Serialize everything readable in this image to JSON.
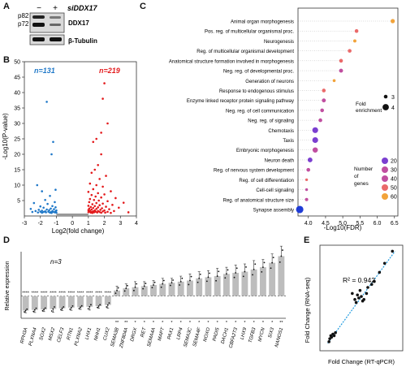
{
  "panels": {
    "A": "A",
    "B": "B",
    "C": "C",
    "D": "D",
    "E": "E"
  },
  "blot": {
    "lane_minus": "−",
    "lane_plus": "+",
    "si_label": "siDDX17",
    "band_p82": "p82",
    "band_p72": "p72",
    "protein_ddx17": "DDX17",
    "protein_tubulin": "β-Tubulin"
  },
  "chart_data": [
    {
      "id": "volcano",
      "type": "scatter",
      "title": "",
      "xlabel": "Log2(fold change)",
      "ylabel": "-Log10(P-value)",
      "xlim": [
        -3,
        4
      ],
      "ylim": [
        0,
        50
      ],
      "xticks": [
        -3,
        -2,
        -1,
        0,
        1,
        2,
        3,
        4
      ],
      "xtick_labels": [
        "-3",
        "-2",
        "-1",
        "0",
        "1",
        "2",
        "3",
        "4"
      ],
      "yticks": [
        5,
        10,
        15,
        20,
        25,
        30,
        35,
        40,
        45,
        50
      ],
      "ytick_labels": [
        "5",
        "10",
        "15",
        "20",
        "25",
        "30",
        "35",
        "40",
        "45",
        "50"
      ],
      "down_count_label": "n=131",
      "up_count_label": "n=219",
      "colors": {
        "down": "#1f78c8",
        "up": "#e31a1c",
        "ns": "#999999"
      },
      "series": [
        {
          "group": "down",
          "points": [
            [
              -1.6,
              37
            ],
            [
              -1.2,
              24
            ],
            [
              -1.3,
              20
            ],
            [
              -2.2,
              10
            ],
            [
              -1.9,
              8
            ],
            [
              -1.05,
              8.5
            ],
            [
              -1.4,
              6.5
            ],
            [
              -1.7,
              5.2
            ],
            [
              -2.4,
              4.2
            ],
            [
              -1.1,
              4.5
            ],
            [
              -1.55,
              3.9
            ],
            [
              -1.25,
              3.2
            ],
            [
              -2.0,
              3.1
            ],
            [
              -1.05,
              2.8
            ],
            [
              -1.8,
              2.7
            ],
            [
              -1.35,
              2.4
            ],
            [
              -2.6,
              2.3
            ],
            [
              -1.15,
              2.2
            ],
            [
              -1.6,
              2.1
            ],
            [
              -2.1,
              2.0
            ],
            [
              -1.45,
              1.9
            ],
            [
              -1.0,
              1.8
            ],
            [
              -1.9,
              1.7
            ],
            [
              -1.25,
              1.6
            ],
            [
              -2.3,
              1.6
            ],
            [
              -1.7,
              1.5
            ],
            [
              -1.05,
              1.5
            ],
            [
              -1.5,
              1.4
            ],
            [
              -2.0,
              1.4
            ],
            [
              -1.2,
              1.35
            ],
            [
              -1.8,
              1.3
            ],
            [
              -2.5,
              1.3
            ],
            [
              -1.35,
              1.25
            ],
            [
              -1.1,
              1.2
            ],
            [
              -1.65,
              1.2
            ],
            [
              -2.15,
              1.15
            ],
            [
              -1.4,
              1.1
            ],
            [
              -1.0,
              1.1
            ],
            [
              -1.9,
              1.05
            ],
            [
              -1.3,
              1.0
            ]
          ]
        },
        {
          "group": "up",
          "points": [
            [
              2.0,
              43
            ],
            [
              1.9,
              38
            ],
            [
              2.2,
              30
            ],
            [
              1.8,
              27
            ],
            [
              1.5,
              25
            ],
            [
              1.3,
              24
            ],
            [
              1.8,
              20
            ],
            [
              1.6,
              16.5
            ],
            [
              1.4,
              15
            ],
            [
              1.2,
              14
            ],
            [
              2.1,
              13
            ],
            [
              1.7,
              12
            ],
            [
              1.1,
              10.5
            ],
            [
              1.5,
              10
            ],
            [
              1.9,
              9.5
            ],
            [
              1.3,
              8.7
            ],
            [
              2.4,
              8
            ],
            [
              1.0,
              7.8
            ],
            [
              1.6,
              7.4
            ],
            [
              2.0,
              7
            ],
            [
              1.2,
              6.8
            ],
            [
              1.45,
              6.3
            ],
            [
              1.8,
              6
            ],
            [
              2.7,
              5.8
            ],
            [
              1.1,
              5.5
            ],
            [
              1.35,
              5.2
            ],
            [
              1.65,
              5
            ],
            [
              2.2,
              4.8
            ],
            [
              3.2,
              4.3
            ],
            [
              1.05,
              4.5
            ],
            [
              1.5,
              4.2
            ],
            [
              1.9,
              4
            ],
            [
              1.25,
              3.8
            ],
            [
              2.5,
              3.6
            ],
            [
              1.7,
              3.5
            ],
            [
              1.0,
              3.3
            ],
            [
              1.4,
              3.2
            ],
            [
              2.1,
              3
            ],
            [
              1.15,
              2.9
            ],
            [
              1.6,
              2.8
            ],
            [
              2.9,
              2.7
            ],
            [
              1.3,
              2.6
            ],
            [
              1.85,
              2.5
            ],
            [
              1.05,
              2.4
            ],
            [
              1.5,
              2.3
            ],
            [
              2.3,
              2.2
            ],
            [
              1.2,
              2.1
            ],
            [
              1.75,
              2.0
            ],
            [
              1.0,
              1.9
            ],
            [
              1.4,
              1.8
            ],
            [
              2.0,
              1.8
            ],
            [
              1.1,
              1.7
            ],
            [
              1.6,
              1.6
            ],
            [
              2.6,
              1.6
            ],
            [
              1.3,
              1.5
            ],
            [
              1.9,
              1.5
            ],
            [
              1.05,
              1.4
            ],
            [
              1.45,
              1.4
            ],
            [
              2.2,
              1.35
            ],
            [
              1.2,
              1.3
            ],
            [
              1.7,
              1.3
            ],
            [
              1.0,
              1.25
            ],
            [
              1.35,
              1.2
            ],
            [
              3.5,
              1.2
            ],
            [
              1.55,
              1.15
            ],
            [
              2.05,
              1.1
            ],
            [
              1.15,
              1.1
            ],
            [
              1.8,
              1.05
            ],
            [
              1.25,
              1.0
            ],
            [
              2.4,
              1.0
            ]
          ]
        },
        {
          "group": "ns",
          "band": [
            -1,
            1,
            0,
            0.8
          ]
        }
      ]
    },
    {
      "id": "go-enrichment",
      "type": "scatter",
      "title": "",
      "xlabel": "-Log10(FDR)",
      "xlim": [
        3.7,
        6.6
      ],
      "xticks": [
        4.0,
        4.5,
        5.0,
        5.5,
        6.0,
        6.5
      ],
      "xtick_labels": [
        "4.0",
        "4.5",
        "5.0",
        "5.5",
        "6.0",
        "6.5"
      ],
      "terms": [
        "Animal organ morphogenesis",
        "Pos. reg. of multicellular organismal proc.",
        "Neurogenesis",
        "Reg. of multicellular organismal development",
        "Anatomical structure formation involved in morphogenesis",
        "Neg. reg. of developmental proc.",
        "Generation of neurons",
        "Response to endogenous stimulus",
        "Enzyme linked receptor protein signaling pathway",
        "Neg. reg. of cell communication",
        "Neg. reg. of signaling",
        "Chemotaxis",
        "Taxis",
        "Embryonic morphogenesis",
        "Neuron death",
        "Reg. of nervous system development",
        "Reg. of cell differentiation",
        "Cell-cell signaling",
        "Reg. of anatomical structure size",
        "Synapse assembly"
      ],
      "fdr": [
        6.45,
        5.4,
        5.35,
        5.2,
        4.95,
        4.95,
        4.75,
        4.45,
        4.45,
        4.4,
        4.35,
        4.2,
        4.2,
        4.2,
        4.05,
        4.0,
        3.95,
        3.95,
        3.95,
        3.75
      ],
      "fold_enrichment": [
        3.2,
        3.0,
        2.8,
        3.0,
        3.0,
        3.1,
        2.7,
        3.0,
        3.1,
        3.0,
        3.0,
        3.8,
        3.8,
        3.6,
        3.4,
        3.0,
        2.6,
        2.6,
        2.8,
        4.4
      ],
      "number_of_genes": [
        58,
        48,
        60,
        52,
        44,
        38,
        56,
        44,
        38,
        40,
        40,
        28,
        28,
        30,
        24,
        30,
        44,
        36,
        32,
        12
      ],
      "legend_fold_title": "Fold\nenrichment",
      "legend_fold_values": [
        "3",
        "4"
      ],
      "legend_genes_title": "Number\nof\ngenes",
      "legend_genes_values": [
        "20",
        "30",
        "40",
        "50",
        "60"
      ],
      "color_stops": [
        "#1f3cd6",
        "#7b3fd0",
        "#c04fa0",
        "#ea6a6a",
        "#f2a33a"
      ]
    },
    {
      "id": "rt-qpcr-bars",
      "type": "bar",
      "title": "",
      "ylabel": "Relative expression",
      "annotation": "n=3",
      "ylim": [
        0,
        3
      ],
      "reference_line": 1,
      "categories": [
        "RPH3A",
        "PLXNA4",
        "SOX2",
        "MSX2",
        "CELF3",
        "RTN1",
        "PLXNA2",
        "LHX1",
        "NHH1",
        "CUX2",
        "SEMA3B",
        "ZNF804A",
        "DRGX",
        "RET",
        "SEMA4A",
        "MAPT",
        "PAX1",
        "LRP4",
        "SEMA3C",
        "SEMA4F",
        "NOXO",
        "PADI5",
        "DACH1",
        "CBFA2T3",
        "LHX9",
        "TGFB3",
        "MYCN",
        "SIX3",
        "NANOS1"
      ],
      "values": [
        0.35,
        0.38,
        0.4,
        0.42,
        0.45,
        0.48,
        0.5,
        0.52,
        0.55,
        0.6,
        1.25,
        1.35,
        1.4,
        1.45,
        1.5,
        1.55,
        1.6,
        1.65,
        1.7,
        1.8,
        1.85,
        1.9,
        2.0,
        2.05,
        2.1,
        2.2,
        2.3,
        2.5,
        2.8
      ],
      "errors": [
        0.1,
        0.12,
        0.1,
        0.15,
        0.1,
        0.12,
        0.1,
        0.15,
        0.1,
        0.15,
        0.2,
        0.2,
        0.25,
        0.2,
        0.2,
        0.25,
        0.2,
        0.25,
        0.3,
        0.3,
        0.3,
        0.35,
        0.3,
        0.35,
        0.35,
        0.4,
        0.35,
        0.4,
        0.45
      ],
      "significance": [
        "****",
        "****",
        "****",
        "****",
        "****",
        "****",
        "****",
        "****",
        "****",
        "****",
        "**",
        "**",
        "*",
        "*",
        "*",
        "*",
        "*",
        "*",
        "*",
        "*",
        "*",
        "*",
        "*",
        "*",
        "*",
        "*",
        "*",
        "*",
        "**"
      ]
    },
    {
      "id": "correlation",
      "type": "scatter",
      "title": "",
      "xlabel": "Fold Change (RT-qPCR)",
      "ylabel": "Fold Change (RNA-seq)",
      "annotation": "R² = 0.942",
      "xlim": [
        0,
        3.2
      ],
      "ylim": [
        0,
        3.5
      ],
      "fit_line": [
        [
          0.3,
          0.25
        ],
        [
          2.9,
          3.3
        ]
      ],
      "x": [
        0.35,
        0.38,
        0.42,
        0.45,
        0.5,
        0.55,
        0.6,
        1.25,
        1.35,
        1.4,
        1.45,
        1.5,
        1.55,
        1.6,
        1.65,
        1.7,
        1.8,
        1.85,
        2.0,
        2.1,
        2.3,
        2.5,
        2.8
      ],
      "y": [
        0.3,
        0.4,
        0.5,
        0.45,
        0.55,
        0.5,
        0.6,
        1.9,
        1.7,
        1.6,
        1.85,
        1.75,
        2.0,
        1.8,
        1.65,
        1.7,
        1.9,
        2.1,
        2.2,
        2.3,
        2.6,
        2.9,
        3.3
      ]
    }
  ]
}
